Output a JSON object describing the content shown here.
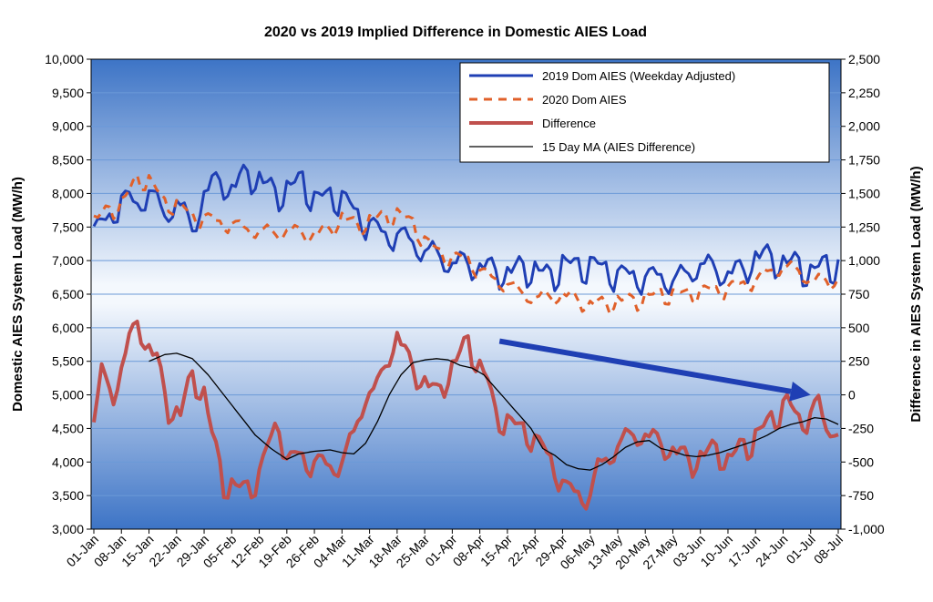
{
  "chart_data": {
    "type": "line",
    "title": "2020 vs 2019 Implied Difference in Domestic AIES Load",
    "ylabel": "Domestic AIES System Load (MW/h)",
    "y2label": "Difference in AIES System Load (MW/h)",
    "ylim": [
      3000,
      10000
    ],
    "y2lim": [
      -1000,
      2500
    ],
    "y_ticks": [
      "10,000",
      "9,500",
      "9,000",
      "8,500",
      "8,000",
      "7,500",
      "7,000",
      "6,500",
      "6,000",
      "5,500",
      "5,000",
      "4,500",
      "4,000",
      "3,500",
      "3,000"
    ],
    "y2_ticks": [
      "2,500",
      "2,250",
      "2,000",
      "1,750",
      "1,500",
      "1,250",
      "1,000",
      "750",
      "500",
      "250",
      "0",
      "-250",
      "-500",
      "-750",
      "-1,000"
    ],
    "x_ticks": [
      "01-Jan",
      "08-Jan",
      "15-Jan",
      "22-Jan",
      "29-Jan",
      "05-Feb",
      "12-Feb",
      "19-Feb",
      "26-Feb",
      "04-Mar",
      "11-Mar",
      "18-Mar",
      "25-Mar",
      "01-Apr",
      "08-Apr",
      "15-Apr",
      "22-Apr",
      "29-Apr",
      "06-May",
      "13-May",
      "20-May",
      "27-May",
      "03-Jun",
      "10-Jun",
      "17-Jun",
      "24-Jun",
      "01-Jul",
      "08-Jul"
    ],
    "grid": true,
    "legend_position": "top-right",
    "colors": {
      "dom2019": "#1f3fb4",
      "dom2020": "#e0602a",
      "difference": "#c0504d",
      "ma15": "#000000",
      "plot_bg_edge": "#3d74c6",
      "plot_bg_mid": "#f4f8fd",
      "arrow": "#1f3fb4",
      "grid": "#6b9ad8"
    },
    "series": [
      {
        "name": "2019 Dom AIES (Weekday Adjusted)",
        "axis": "left",
        "style": "solid-blue",
        "anchors": [
          [
            0,
            7450
          ],
          [
            4,
            7600
          ],
          [
            7,
            7950
          ],
          [
            11,
            7800
          ],
          [
            14,
            8050
          ],
          [
            18,
            7650
          ],
          [
            21,
            7900
          ],
          [
            25,
            7450
          ],
          [
            28,
            8000
          ],
          [
            32,
            8200
          ],
          [
            35,
            8050
          ],
          [
            39,
            8300
          ],
          [
            42,
            8200
          ],
          [
            46,
            8000
          ],
          [
            49,
            8050
          ],
          [
            53,
            8200
          ],
          [
            56,
            7900
          ],
          [
            60,
            7950
          ],
          [
            63,
            7950
          ],
          [
            67,
            7650
          ],
          [
            70,
            7550
          ],
          [
            74,
            7350
          ],
          [
            77,
            7400
          ],
          [
            81,
            7250
          ],
          [
            84,
            7150
          ],
          [
            88,
            7050
          ],
          [
            91,
            6950
          ],
          [
            95,
            6950
          ],
          [
            98,
            6900
          ],
          [
            102,
            6850
          ],
          [
            105,
            6800
          ],
          [
            109,
            6900
          ],
          [
            112,
            6850
          ],
          [
            116,
            6750
          ],
          [
            119,
            6950
          ],
          [
            123,
            6900
          ],
          [
            126,
            6950
          ],
          [
            130,
            6850
          ],
          [
            133,
            6800
          ],
          [
            137,
            6750
          ],
          [
            140,
            6750
          ],
          [
            144,
            6750
          ],
          [
            147,
            6700
          ],
          [
            151,
            6800
          ],
          [
            154,
            6950
          ],
          [
            158,
            6850
          ],
          [
            161,
            6800
          ],
          [
            165,
            6850
          ],
          [
            168,
            7050
          ],
          [
            172,
            7050
          ],
          [
            175,
            6950
          ],
          [
            179,
            6950
          ],
          [
            182,
            6800
          ],
          [
            186,
            6950
          ],
          [
            189,
            6900
          ]
        ],
        "amplitude": 260,
        "period": 7
      },
      {
        "name": "2020 Dom AIES",
        "axis": "left",
        "style": "dashed-orange",
        "anchors": [
          [
            0,
            7600
          ],
          [
            4,
            7750
          ],
          [
            7,
            7850
          ],
          [
            11,
            8200
          ],
          [
            14,
            8200
          ],
          [
            18,
            7850
          ],
          [
            21,
            7850
          ],
          [
            25,
            7650
          ],
          [
            28,
            7650
          ],
          [
            32,
            7550
          ],
          [
            35,
            7550
          ],
          [
            39,
            7450
          ],
          [
            42,
            7450
          ],
          [
            46,
            7400
          ],
          [
            49,
            7450
          ],
          [
            53,
            7400
          ],
          [
            56,
            7400
          ],
          [
            60,
            7450
          ],
          [
            63,
            7650
          ],
          [
            67,
            7500
          ],
          [
            70,
            7600
          ],
          [
            74,
            7650
          ],
          [
            77,
            7700
          ],
          [
            81,
            7550
          ],
          [
            84,
            7300
          ],
          [
            88,
            7100
          ],
          [
            91,
            7050
          ],
          [
            95,
            7000
          ],
          [
            98,
            6850
          ],
          [
            102,
            6700
          ],
          [
            105,
            6650
          ],
          [
            109,
            6500
          ],
          [
            112,
            6450
          ],
          [
            116,
            6450
          ],
          [
            119,
            6500
          ],
          [
            123,
            6400
          ],
          [
            126,
            6350
          ],
          [
            130,
            6350
          ],
          [
            133,
            6400
          ],
          [
            137,
            6400
          ],
          [
            140,
            6450
          ],
          [
            144,
            6500
          ],
          [
            147,
            6500
          ],
          [
            151,
            6500
          ],
          [
            154,
            6550
          ],
          [
            158,
            6550
          ],
          [
            161,
            6600
          ],
          [
            165,
            6650
          ],
          [
            168,
            6700
          ],
          [
            172,
            6850
          ],
          [
            175,
            6900
          ],
          [
            179,
            6850
          ],
          [
            182,
            6700
          ],
          [
            186,
            6700
          ],
          [
            189,
            6700
          ]
        ],
        "amplitude": 150,
        "period": 7
      },
      {
        "name": "Difference",
        "axis": "right",
        "style": "thick-red",
        "anchors": [
          [
            0,
            -200
          ],
          [
            2,
            150
          ],
          [
            5,
            0
          ],
          [
            8,
            300
          ],
          [
            11,
            550
          ],
          [
            13,
            400
          ],
          [
            16,
            250
          ],
          [
            19,
            -100
          ],
          [
            22,
            -150
          ],
          [
            25,
            150
          ],
          [
            28,
            0
          ],
          [
            30,
            -300
          ],
          [
            33,
            -650
          ],
          [
            36,
            -700
          ],
          [
            39,
            -700
          ],
          [
            42,
            -600
          ],
          [
            44,
            -400
          ],
          [
            47,
            -200
          ],
          [
            49,
            -500
          ],
          [
            52,
            -450
          ],
          [
            54,
            -500
          ],
          [
            57,
            -500
          ],
          [
            60,
            -550
          ],
          [
            63,
            -500
          ],
          [
            66,
            -300
          ],
          [
            69,
            0
          ],
          [
            72,
            50
          ],
          [
            75,
            300
          ],
          [
            77,
            450
          ],
          [
            79,
            300
          ],
          [
            82,
            150
          ],
          [
            84,
            100
          ],
          [
            87,
            0
          ],
          [
            90,
            150
          ],
          [
            93,
            300
          ],
          [
            95,
            400
          ],
          [
            98,
            200
          ],
          [
            100,
            100
          ],
          [
            102,
            -150
          ],
          [
            105,
            -200
          ],
          [
            108,
            -250
          ],
          [
            111,
            -300
          ],
          [
            114,
            -400
          ],
          [
            117,
            -550
          ],
          [
            120,
            -700
          ],
          [
            123,
            -750
          ],
          [
            126,
            -750
          ],
          [
            128,
            -550
          ],
          [
            131,
            -450
          ],
          [
            134,
            -350
          ],
          [
            137,
            -300
          ],
          [
            140,
            -300
          ],
          [
            143,
            -350
          ],
          [
            146,
            -400
          ],
          [
            149,
            -450
          ],
          [
            152,
            -500
          ],
          [
            155,
            -450
          ],
          [
            158,
            -400
          ],
          [
            161,
            -500
          ],
          [
            164,
            -400
          ],
          [
            167,
            -350
          ],
          [
            170,
            -250
          ],
          [
            173,
            -150
          ],
          [
            176,
            -50
          ],
          [
            179,
            -200
          ],
          [
            182,
            -150
          ],
          [
            184,
            -50
          ],
          [
            186,
            -300
          ],
          [
            188,
            -200
          ],
          [
            189,
            -300
          ]
        ],
        "amplitude": 110,
        "period": 7
      },
      {
        "name": "15 Day MA (AIES Difference)",
        "axis": "right",
        "style": "thin-black",
        "anchors": [
          [
            14,
            250
          ],
          [
            18,
            300
          ],
          [
            21,
            310
          ],
          [
            25,
            270
          ],
          [
            29,
            150
          ],
          [
            33,
            0
          ],
          [
            37,
            -150
          ],
          [
            41,
            -300
          ],
          [
            45,
            -400
          ],
          [
            49,
            -480
          ],
          [
            52,
            -440
          ],
          [
            56,
            -420
          ],
          [
            60,
            -410
          ],
          [
            63,
            -430
          ],
          [
            66,
            -440
          ],
          [
            69,
            -360
          ],
          [
            72,
            -200
          ],
          [
            75,
            0
          ],
          [
            78,
            150
          ],
          [
            81,
            240
          ],
          [
            84,
            260
          ],
          [
            87,
            270
          ],
          [
            90,
            260
          ],
          [
            93,
            220
          ],
          [
            96,
            200
          ],
          [
            99,
            150
          ],
          [
            102,
            50
          ],
          [
            105,
            -50
          ],
          [
            108,
            -150
          ],
          [
            111,
            -250
          ],
          [
            114,
            -400
          ],
          [
            117,
            -450
          ],
          [
            120,
            -520
          ],
          [
            123,
            -550
          ],
          [
            126,
            -560
          ],
          [
            129,
            -520
          ],
          [
            132,
            -460
          ],
          [
            135,
            -390
          ],
          [
            138,
            -350
          ],
          [
            141,
            -340
          ],
          [
            144,
            -400
          ],
          [
            147,
            -420
          ],
          [
            150,
            -450
          ],
          [
            153,
            -460
          ],
          [
            156,
            -450
          ],
          [
            159,
            -430
          ],
          [
            162,
            -400
          ],
          [
            165,
            -370
          ],
          [
            168,
            -340
          ],
          [
            171,
            -300
          ],
          [
            174,
            -250
          ],
          [
            177,
            -220
          ],
          [
            180,
            -200
          ],
          [
            183,
            -170
          ],
          [
            186,
            -180
          ],
          [
            189,
            -220
          ]
        ],
        "amplitude": 0,
        "period": 7
      }
    ],
    "annotations": [
      {
        "type": "arrow",
        "from": [
          103,
          400
        ],
        "to": [
          182,
          0
        ],
        "axis": "right",
        "color": "#1f3fb4"
      }
    ]
  }
}
